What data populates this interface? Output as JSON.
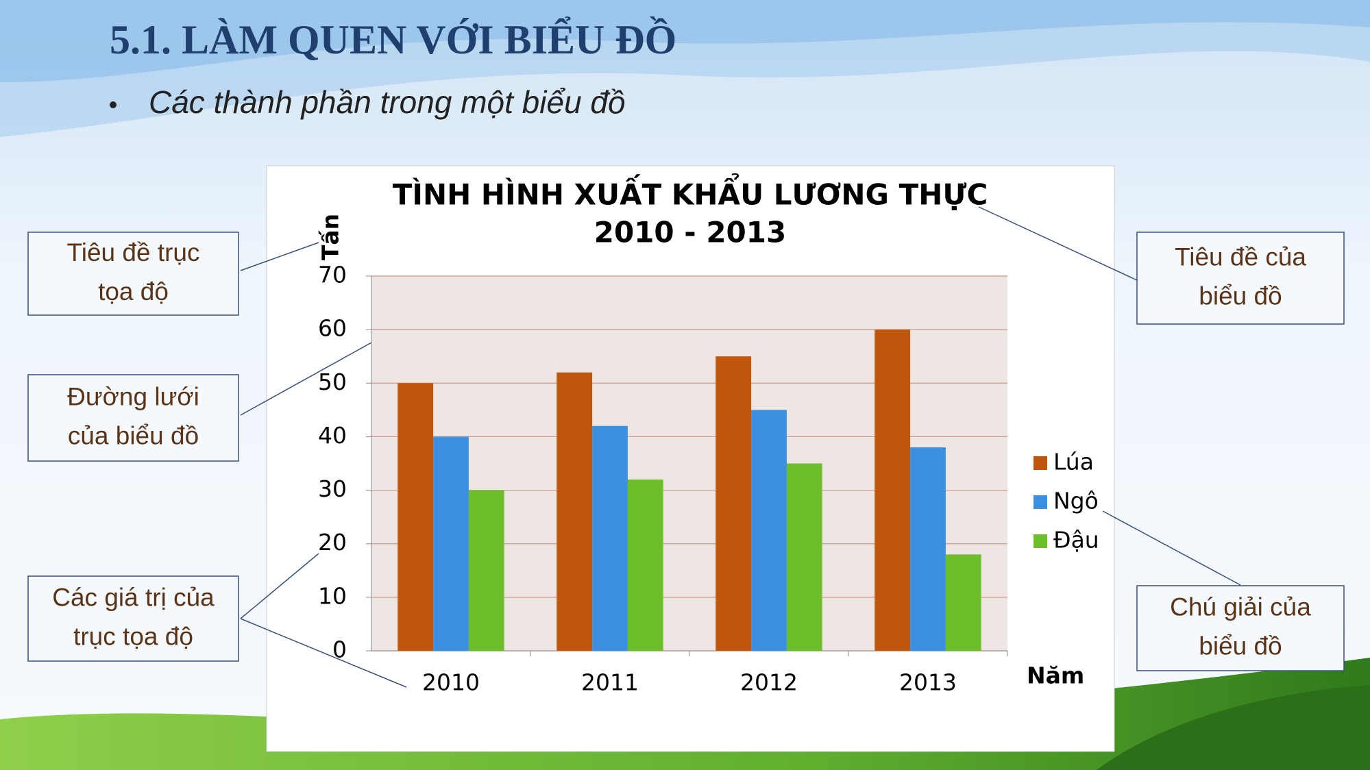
{
  "slide": {
    "title": "5.1. LÀM QUEN VỚI BIỂU ĐỒ",
    "bullet": "Các thành phần trong một biểu đồ"
  },
  "callouts": [
    {
      "lines": [
        "Tiêu đề trục",
        "tọa độ"
      ]
    },
    {
      "lines": [
        "Đường lưới",
        "của biểu đồ"
      ]
    },
    {
      "lines": [
        "Các giá trị của",
        "trục tọa độ"
      ]
    },
    {
      "lines": [
        "Tiêu đề của",
        "biểu đồ"
      ]
    },
    {
      "lines": [
        "Chú giải của",
        "biểu đồ"
      ]
    }
  ],
  "chart_data": {
    "type": "bar",
    "title": [
      "TÌNH HÌNH XUẤT KHẨU LƯƠNG THỰC",
      "2010 - 2013"
    ],
    "x_label": "Năm",
    "y_label": "Tấn",
    "categories": [
      "2010",
      "2011",
      "2012",
      "2013"
    ],
    "series": [
      {
        "name": "Lúa",
        "color": "#c0560c",
        "values": [
          50,
          52,
          55,
          60
        ]
      },
      {
        "name": "Ngô",
        "color": "#3a8fe0",
        "values": [
          40,
          42,
          45,
          38
        ]
      },
      {
        "name": "Đậu",
        "color": "#6cbf2a",
        "values": [
          30,
          32,
          35,
          18
        ]
      }
    ],
    "ylim": [
      0,
      70
    ],
    "yticks": [
      0,
      10,
      20,
      30,
      40,
      50,
      60,
      70
    ],
    "grid": true,
    "legend": "right"
  }
}
